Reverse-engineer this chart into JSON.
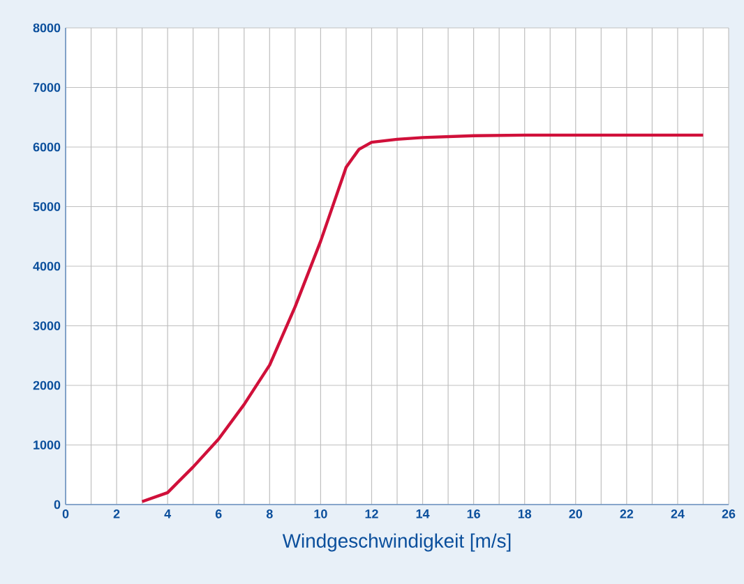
{
  "chart_data": {
    "type": "line",
    "xlabel": "Windgeschwindigkeit [m/s]",
    "series": [
      {
        "color": "#d0103a",
        "x": [
          3,
          4,
          5,
          6,
          7,
          8,
          9,
          10,
          11,
          11.5,
          12,
          13,
          14,
          16,
          18,
          20,
          22,
          25
        ],
        "values": [
          50,
          200,
          630,
          1100,
          1680,
          2340,
          3320,
          4420,
          5660,
          5960,
          6080,
          6130,
          6160,
          6190,
          6200,
          6200,
          6200,
          6200
        ]
      }
    ],
    "xlim": [
      0,
      26
    ],
    "xticks": [
      0,
      2,
      4,
      6,
      8,
      10,
      12,
      14,
      16,
      18,
      20,
      22,
      24,
      26
    ],
    "ylim": [
      0,
      8000
    ],
    "yticks": [
      0,
      1000,
      2000,
      3000,
      4000,
      5000,
      6000,
      7000,
      8000
    ],
    "grid": true,
    "marker": "none",
    "line_style": "solid"
  }
}
